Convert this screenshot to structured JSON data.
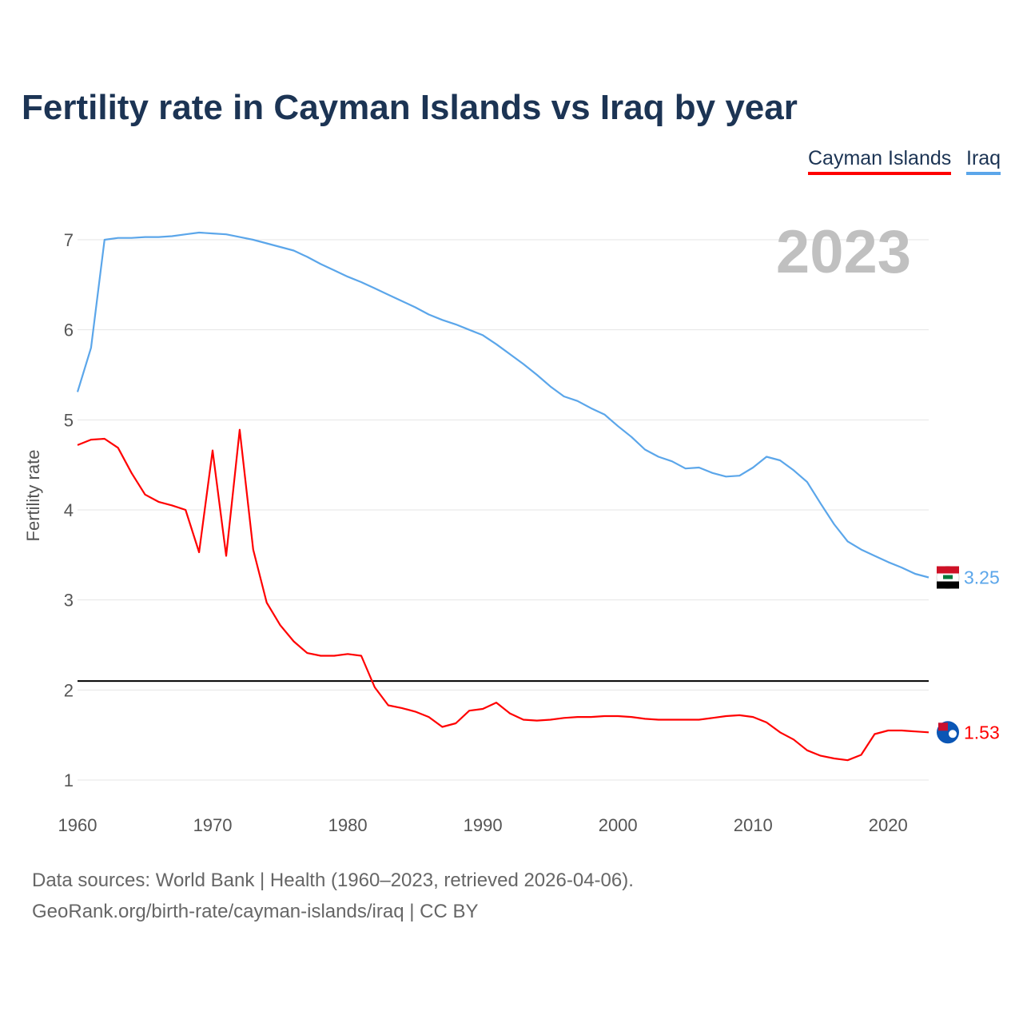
{
  "chart_data": {
    "type": "line",
    "title": "Fertility rate in Cayman Islands vs Iraq by year",
    "ylabel": "Fertility rate",
    "xlabel": "",
    "year_badge": "2023",
    "xlim": [
      1960,
      2023
    ],
    "ylim": [
      1,
      7
    ],
    "x_ticks": [
      "1960",
      "1970",
      "1980",
      "1990",
      "2000",
      "2010",
      "2020"
    ],
    "y_ticks": [
      "1",
      "2",
      "3",
      "4",
      "5",
      "6",
      "7"
    ],
    "legend": [
      "Cayman Islands",
      "Iraq"
    ],
    "legend_position": "top-right",
    "reference_line": 2.1,
    "x_start": 1960,
    "series": [
      {
        "name": "Cayman Islands",
        "color": "#ff0000",
        "end_label": "1.53",
        "values": [
          4.72,
          4.78,
          4.79,
          4.69,
          4.41,
          4.17,
          4.09,
          4.05,
          4.0,
          3.53,
          4.66,
          3.49,
          4.89,
          3.56,
          2.97,
          2.72,
          2.54,
          2.41,
          2.38,
          2.38,
          2.4,
          2.38,
          2.03,
          1.83,
          1.8,
          1.76,
          1.7,
          1.59,
          1.63,
          1.77,
          1.79,
          1.86,
          1.74,
          1.67,
          1.66,
          1.67,
          1.69,
          1.7,
          1.7,
          1.71,
          1.71,
          1.7,
          1.68,
          1.67,
          1.67,
          1.67,
          1.67,
          1.69,
          1.71,
          1.72,
          1.7,
          1.64,
          1.53,
          1.45,
          1.33,
          1.27,
          1.24,
          1.22,
          1.28,
          1.51,
          1.55,
          1.55,
          1.54,
          1.53
        ]
      },
      {
        "name": "Iraq",
        "color": "#5ba6ea",
        "end_label": "3.25",
        "values": [
          5.31,
          5.8,
          7.0,
          7.02,
          7.02,
          7.03,
          7.03,
          7.04,
          7.06,
          7.08,
          7.07,
          7.06,
          7.03,
          7.0,
          6.96,
          6.92,
          6.88,
          6.81,
          6.73,
          6.66,
          6.59,
          6.53,
          6.46,
          6.39,
          6.32,
          6.25,
          6.17,
          6.11,
          6.06,
          6.0,
          5.94,
          5.84,
          5.73,
          5.62,
          5.5,
          5.37,
          5.26,
          5.21,
          5.13,
          5.06,
          4.93,
          4.81,
          4.67,
          4.59,
          4.54,
          4.46,
          4.47,
          4.41,
          4.37,
          4.38,
          4.47,
          4.59,
          4.55,
          4.44,
          4.31,
          4.07,
          3.84,
          3.65,
          3.56,
          3.49,
          3.42,
          3.36,
          3.29,
          3.25
        ]
      }
    ]
  },
  "footer": {
    "source": "Data sources: World Bank | Health (1960–2023, retrieved 2026-04-06).",
    "link": "GeoRank.org/birth-rate/cayman-islands/iraq | CC BY"
  }
}
